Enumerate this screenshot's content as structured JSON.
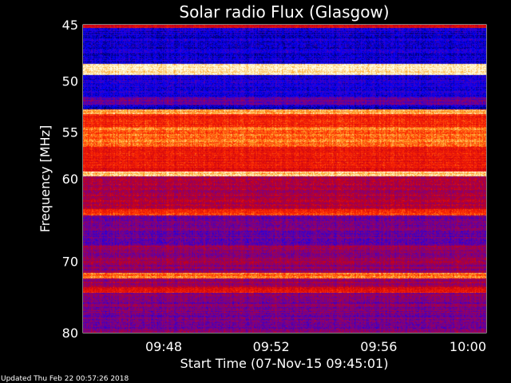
{
  "chart_data": {
    "type": "heatmap",
    "title": "Solar radio Flux (Glasgow)",
    "xlabel": "Start Time (07-Nov-15 09:45:01)",
    "ylabel": "Frequency [MHz]",
    "footer": "Updated Thu Feb 22 00:57:26 2018",
    "x_range_minutes": [
      0,
      15
    ],
    "y_range_mhz": [
      45,
      80
    ],
    "y_scale": "log",
    "x_ticks": [
      {
        "label": "09:48",
        "minute": 3
      },
      {
        "label": "09:52",
        "minute": 7
      },
      {
        "label": "09:56",
        "minute": 11
      },
      {
        "label": "10:00",
        "minute": 15
      }
    ],
    "y_ticks": [
      {
        "label": "45",
        "mhz": 45
      },
      {
        "label": "50",
        "mhz": 50
      },
      {
        "label": "55",
        "mhz": 55
      },
      {
        "label": "60",
        "mhz": 60
      },
      {
        "label": "70",
        "mhz": 70
      },
      {
        "label": "80",
        "mhz": 80
      }
    ],
    "y_minor_ticks": [
      46,
      47,
      48,
      49,
      51,
      52,
      53,
      54,
      56,
      57,
      58,
      59,
      61,
      62,
      63,
      64,
      65,
      66,
      67,
      68,
      69,
      71,
      72,
      73,
      74,
      75,
      76,
      77,
      78,
      79
    ],
    "bands": [
      {
        "from": 45.0,
        "to": 45.3,
        "level": 0.55
      },
      {
        "from": 45.3,
        "to": 48.4,
        "level": 0.12
      },
      {
        "from": 48.4,
        "to": 49.4,
        "level": 0.97
      },
      {
        "from": 49.4,
        "to": 51.5,
        "level": 0.15
      },
      {
        "from": 51.5,
        "to": 52.3,
        "level": 0.3
      },
      {
        "from": 52.3,
        "to": 52.7,
        "level": 0.1
      },
      {
        "from": 52.7,
        "to": 53.2,
        "level": 0.85
      },
      {
        "from": 53.2,
        "to": 54.5,
        "level": 0.65
      },
      {
        "from": 54.5,
        "to": 56.5,
        "level": 0.78
      },
      {
        "from": 56.5,
        "to": 59.2,
        "level": 0.62
      },
      {
        "from": 59.2,
        "to": 59.7,
        "level": 0.92
      },
      {
        "from": 59.7,
        "to": 63.5,
        "level": 0.45
      },
      {
        "from": 63.5,
        "to": 64.3,
        "level": 0.7
      },
      {
        "from": 64.3,
        "to": 68.0,
        "level": 0.3
      },
      {
        "from": 68.0,
        "to": 71.5,
        "level": 0.38
      },
      {
        "from": 71.5,
        "to": 72.3,
        "level": 0.8
      },
      {
        "from": 72.3,
        "to": 73.5,
        "level": 0.4
      },
      {
        "from": 73.5,
        "to": 74.3,
        "level": 0.6
      },
      {
        "from": 74.3,
        "to": 80.0,
        "level": 0.33
      }
    ],
    "colormap": "blue-red-yellow-white"
  }
}
